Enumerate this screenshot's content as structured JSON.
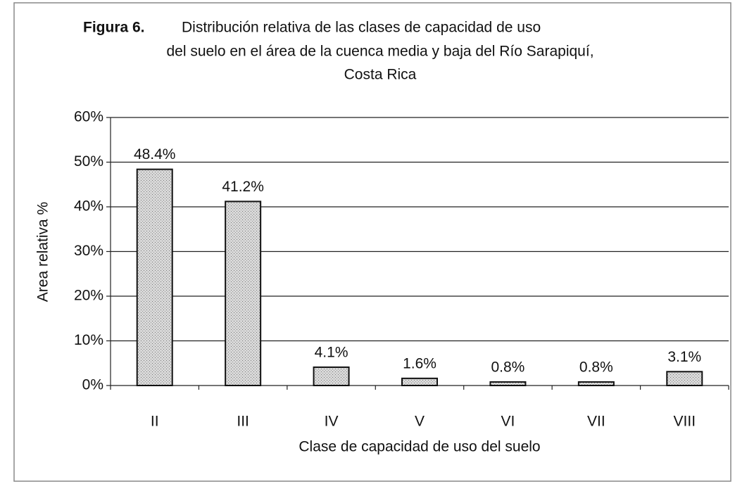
{
  "chart_data": {
    "type": "bar",
    "title_label": "Figura 6.",
    "title": [
      "Distribución relativa de las clases de capacidad de uso",
      "del suelo en el área de la cuenca media y baja del Río Sarapiquí,",
      "Costa Rica"
    ],
    "x_label": "Clase de capacidad de uso del suelo",
    "y_label": "Area relativa %",
    "categories": [
      "II",
      "III",
      "IV",
      "V",
      "VI",
      "VII",
      "VIII"
    ],
    "values": [
      48.4,
      41.2,
      4.1,
      1.6,
      0.8,
      0.8,
      3.1
    ],
    "value_labels": [
      "48.4%",
      "41.2%",
      "4.1%",
      "1.6%",
      "0.8%",
      "0.8%",
      "3.1%"
    ],
    "color": "#cfcfcf",
    "ylim": [
      0,
      60
    ],
    "yticks": [
      {
        "value": 0,
        "label": "0%"
      },
      {
        "value": 10,
        "label": "10%"
      },
      {
        "value": 20,
        "label": "20%"
      },
      {
        "value": 30,
        "label": "30%"
      },
      {
        "value": 40,
        "label": "40%"
      },
      {
        "value": 50,
        "label": "50%"
      },
      {
        "value": 60,
        "label": "60%"
      }
    ],
    "grid": true
  }
}
